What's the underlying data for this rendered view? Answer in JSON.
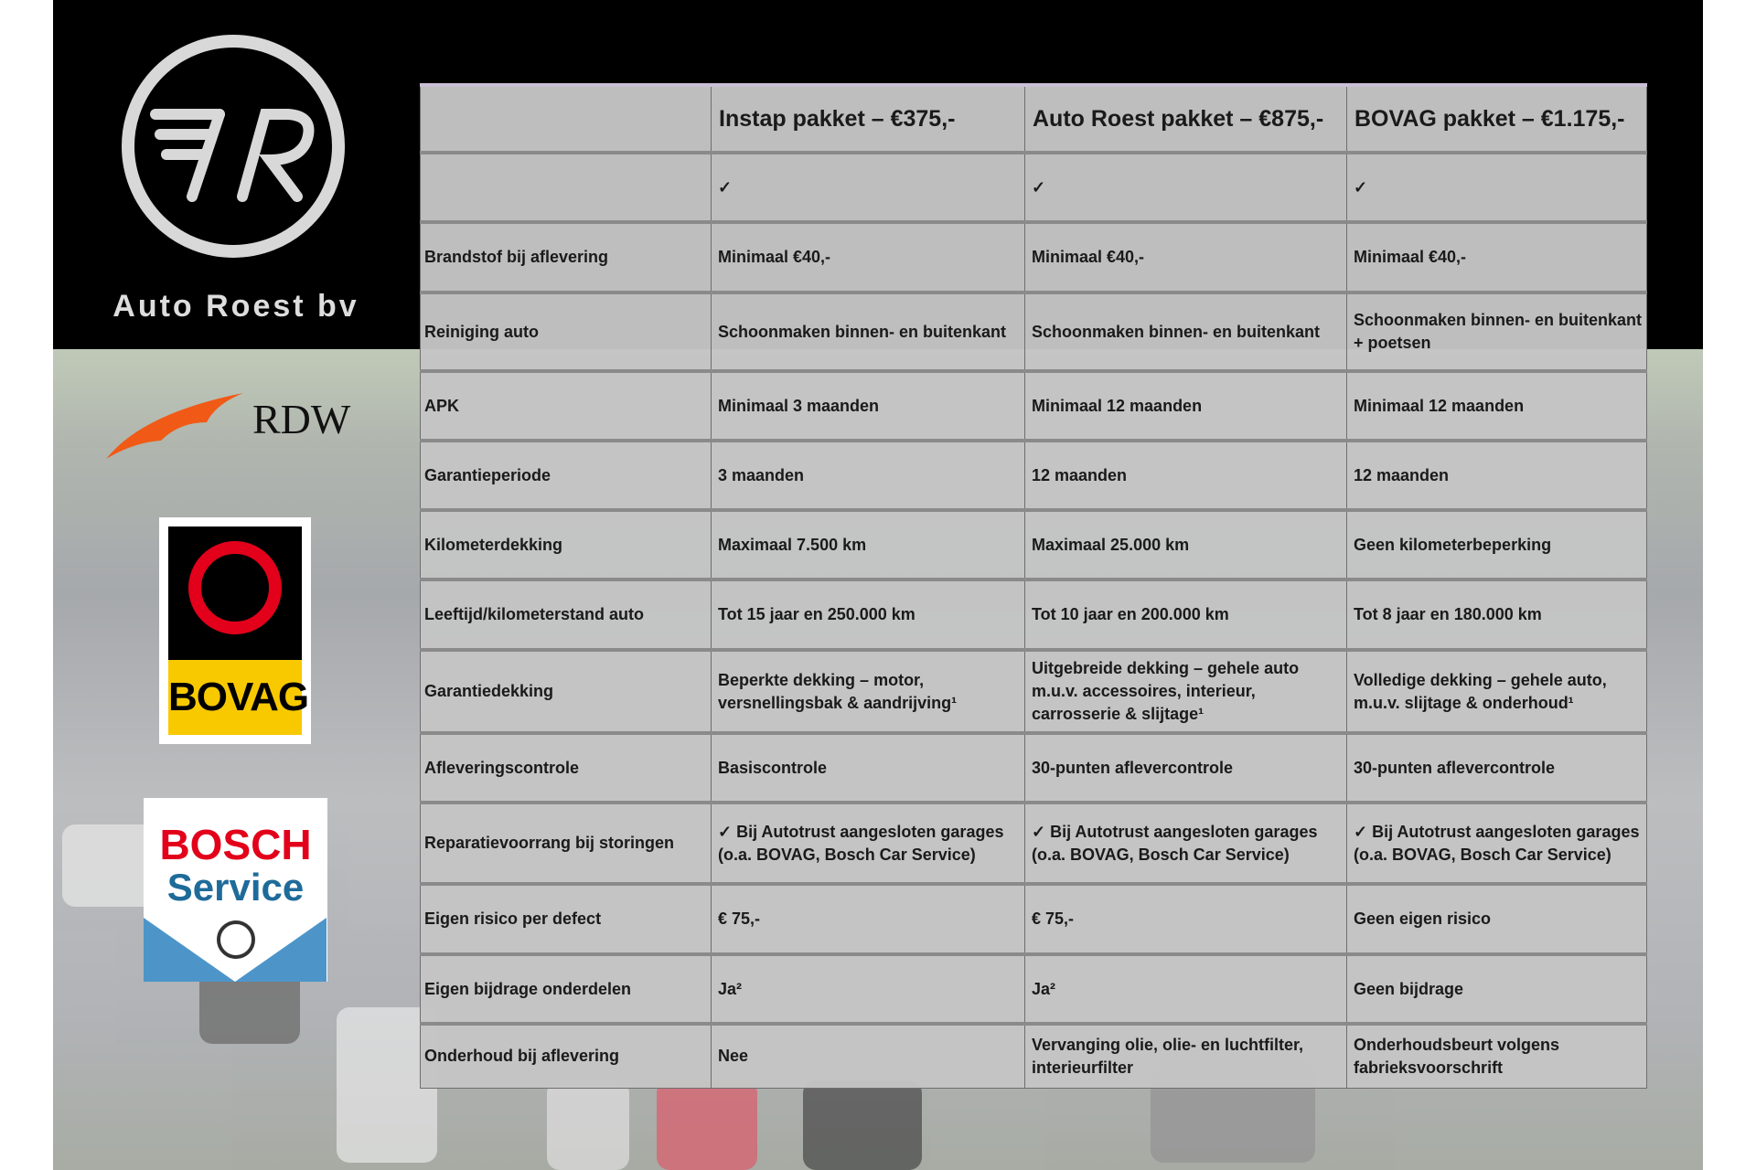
{
  "brand": {
    "name": "Auto Roest bv",
    "logo_letters": "7R"
  },
  "logos": [
    {
      "name": "RDW",
      "text": "RDW"
    },
    {
      "name": "BOVAG",
      "text": "BOVAG"
    },
    {
      "name": "Bosch Service",
      "text1": "BOSCH",
      "text2": "Service"
    }
  ],
  "colors": {
    "bovag_red": "#e2001a",
    "bovag_yellow": "#f9c900",
    "bosch_red": "#e2001a",
    "bosch_blue": "#4d95c9",
    "rdw_orange": "#f05a16",
    "table_bg": "#c4c4c4"
  },
  "table": {
    "headers": [
      "",
      "Instap pakket – €375,-",
      "Auto Roest pakket – €875,-",
      "BOVAG pakket – €1.175,-"
    ],
    "rows": [
      {
        "label": "",
        "values": [
          "✓",
          "✓",
          "✓"
        ]
      },
      {
        "label": "Brandstof bij aflevering",
        "values": [
          "Minimaal €40,-",
          "Minimaal €40,-",
          "Minimaal €40,-"
        ]
      },
      {
        "label": "Reiniging auto",
        "values": [
          "Schoonmaken binnen- en buitenkant",
          "Schoonmaken binnen- en buitenkant",
          "Schoonmaken binnen- en buitenkant + poetsen"
        ]
      },
      {
        "label": "APK",
        "values": [
          "Minimaal 3 maanden",
          "Minimaal 12 maanden",
          "Minimaal 12 maanden"
        ]
      },
      {
        "label": "Garantieperiode",
        "values": [
          "3 maanden",
          "12 maanden",
          "12 maanden"
        ]
      },
      {
        "label": "Kilometerdekking",
        "values": [
          "Maximaal 7.500 km",
          "Maximaal 25.000 km",
          "Geen kilometerbeperking"
        ]
      },
      {
        "label": "Leeftijd/kilometerstand auto",
        "values": [
          "Tot 15 jaar en 250.000 km",
          "Tot 10 jaar en 200.000 km",
          "Tot 8 jaar en 180.000 km"
        ]
      },
      {
        "label": "Garantiedekking",
        "values": [
          "Beperkte dekking – motor, versnellingsbak & aandrijving¹",
          "Uitgebreide dekking – gehele auto m.u.v. accessoires, interieur, carrosserie & slijtage¹",
          "Volledige dekking – gehele auto, m.u.v. slijtage & onderhoud¹"
        ]
      },
      {
        "label": "Afleveringscontrole",
        "values": [
          "Basiscontrole",
          "30-punten aflevercontrole",
          "30-punten aflevercontrole"
        ]
      },
      {
        "label": "Reparatievoorrang bij storingen",
        "values": [
          "✓ Bij Autotrust aangesloten garages (o.a. BOVAG, Bosch Car Service)",
          "✓ Bij Autotrust aangesloten garages (o.a. BOVAG, Bosch Car Service)",
          "✓ Bij Autotrust aangesloten garages (o.a. BOVAG, Bosch Car Service)"
        ]
      },
      {
        "label": "Eigen risico per defect",
        "values": [
          "€ 75,-",
          "€ 75,-",
          "Geen eigen risico"
        ]
      },
      {
        "label": "Eigen bijdrage onderdelen",
        "values": [
          "Ja²",
          "Ja²",
          "Geen bijdrage"
        ]
      },
      {
        "label": "Onderhoud bij aflevering",
        "values": [
          "Nee",
          "Vervanging olie, olie- en luchtfilter, interieurfilter",
          "Onderhoudsbeurt volgens fabrieksvoorschrift"
        ]
      }
    ]
  }
}
